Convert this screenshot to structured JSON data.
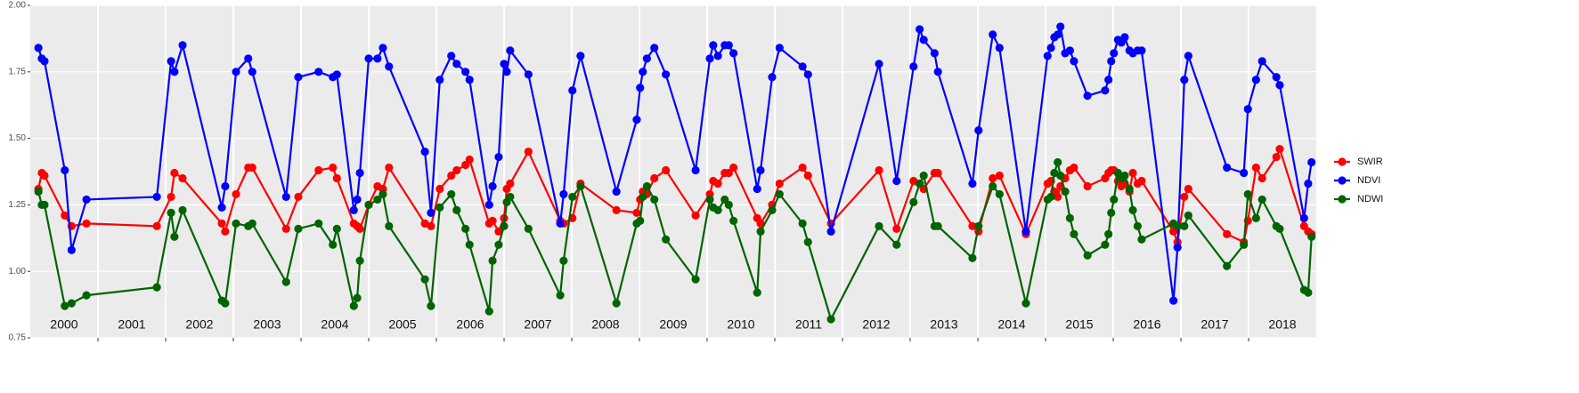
{
  "chart_data": {
    "type": "line",
    "x": [
      2000.12,
      2000.17,
      2000.21,
      2000.51,
      2000.61,
      2000.83,
      2001.87,
      2002.08,
      2002.13,
      2002.25,
      2002.83,
      2002.88,
      2003.04,
      2003.22,
      2003.28,
      2003.78,
      2003.96,
      2004.26,
      2004.47,
      2004.53,
      2004.78,
      2004.83,
      2004.87,
      2005.0,
      2005.13,
      2005.21,
      2005.3,
      2005.83,
      2005.92,
      2006.05,
      2006.22,
      2006.3,
      2006.43,
      2006.49,
      2006.78,
      2006.83,
      2006.92,
      2007.0,
      2007.04,
      2007.09,
      2007.36,
      2007.83,
      2007.88,
      2008.01,
      2008.13,
      2008.66,
      2008.96,
      2009.01,
      2009.05,
      2009.11,
      2009.22,
      2009.39,
      2009.83,
      2010.04,
      2010.09,
      2010.16,
      2010.26,
      2010.32,
      2010.39,
      2010.74,
      2010.79,
      2010.96,
      2011.07,
      2011.41,
      2011.49,
      2011.83,
      2012.54,
      2012.8,
      2013.05,
      2013.14,
      2013.2,
      2013.36,
      2013.41,
      2013.92,
      2014.01,
      2014.22,
      2014.32,
      2014.71,
      2015.03,
      2015.08,
      2015.13,
      2015.18,
      2015.22,
      2015.29,
      2015.36,
      2015.42,
      2015.62,
      2015.88,
      2015.93,
      2015.97,
      2016.01,
      2016.07,
      2016.12,
      2016.17,
      2016.24,
      2016.29,
      2016.36,
      2016.42,
      2016.89,
      2016.95,
      2017.05,
      2017.11,
      2017.68,
      2017.93,
      2017.99,
      2018.11,
      2018.2,
      2018.41,
      2018.46,
      2018.82,
      2018.88,
      2018.93
    ],
    "series": [
      {
        "name": "SWIR",
        "color": "#ff0000",
        "values": [
          1.31,
          1.37,
          1.36,
          1.21,
          1.17,
          1.18,
          1.17,
          1.28,
          1.37,
          1.35,
          1.18,
          1.15,
          1.29,
          1.39,
          1.39,
          1.16,
          1.28,
          1.38,
          1.39,
          1.35,
          1.18,
          1.17,
          1.16,
          1.25,
          1.32,
          1.31,
          1.39,
          1.18,
          1.17,
          1.31,
          1.36,
          1.38,
          1.4,
          1.42,
          1.18,
          1.19,
          1.15,
          1.2,
          1.31,
          1.33,
          1.45,
          1.19,
          1.18,
          1.2,
          1.33,
          1.23,
          1.22,
          1.27,
          1.3,
          1.29,
          1.35,
          1.38,
          1.21,
          1.29,
          1.34,
          1.33,
          1.37,
          1.37,
          1.39,
          1.2,
          1.18,
          1.25,
          1.33,
          1.39,
          1.36,
          1.18,
          1.38,
          1.16,
          1.34,
          1.33,
          1.31,
          1.37,
          1.37,
          1.17,
          1.15,
          1.35,
          1.36,
          1.14,
          1.33,
          1.34,
          1.3,
          1.28,
          1.32,
          1.35,
          1.38,
          1.39,
          1.32,
          1.35,
          1.37,
          1.38,
          1.38,
          1.34,
          1.32,
          1.33,
          1.3,
          1.37,
          1.33,
          1.34,
          1.15,
          1.11,
          1.28,
          1.31,
          1.14,
          1.11,
          1.19,
          1.39,
          1.35,
          1.43,
          1.46,
          1.17,
          1.15,
          1.14
        ]
      },
      {
        "name": "NDVI",
        "color": "#0000ff",
        "values": [
          1.84,
          1.8,
          1.79,
          1.38,
          1.08,
          1.27,
          1.28,
          1.79,
          1.75,
          1.85,
          1.24,
          1.32,
          1.75,
          1.8,
          1.75,
          1.28,
          1.73,
          1.75,
          1.73,
          1.74,
          1.23,
          1.27,
          1.37,
          1.8,
          1.8,
          1.84,
          1.77,
          1.45,
          1.22,
          1.72,
          1.81,
          1.78,
          1.75,
          1.72,
          1.25,
          1.32,
          1.43,
          1.78,
          1.75,
          1.83,
          1.74,
          1.18,
          1.29,
          1.68,
          1.81,
          1.3,
          1.57,
          1.69,
          1.75,
          1.8,
          1.84,
          1.74,
          1.38,
          1.8,
          1.85,
          1.81,
          1.85,
          1.85,
          1.82,
          1.31,
          1.38,
          1.73,
          1.84,
          1.77,
          1.74,
          1.15,
          1.78,
          1.34,
          1.77,
          1.91,
          1.87,
          1.82,
          1.75,
          1.33,
          1.53,
          1.89,
          1.84,
          1.15,
          1.81,
          1.84,
          1.88,
          1.89,
          1.92,
          1.82,
          1.83,
          1.79,
          1.66,
          1.68,
          1.72,
          1.79,
          1.82,
          1.87,
          1.86,
          1.88,
          1.83,
          1.82,
          1.83,
          1.83,
          0.89,
          1.09,
          1.72,
          1.81,
          1.39,
          1.37,
          1.61,
          1.72,
          1.79,
          1.73,
          1.7,
          1.2,
          1.33,
          1.41
        ]
      },
      {
        "name": "NDWI",
        "color": "#006400",
        "values": [
          1.3,
          1.25,
          1.25,
          0.87,
          0.88,
          0.91,
          0.94,
          1.22,
          1.13,
          1.23,
          0.89,
          0.88,
          1.18,
          1.17,
          1.18,
          0.96,
          1.16,
          1.18,
          1.1,
          1.16,
          0.87,
          0.9,
          1.04,
          1.25,
          1.27,
          1.29,
          1.17,
          0.97,
          0.87,
          1.24,
          1.29,
          1.23,
          1.16,
          1.1,
          0.85,
          1.04,
          1.1,
          1.17,
          1.26,
          1.28,
          1.16,
          0.91,
          1.04,
          1.28,
          1.32,
          0.88,
          1.18,
          1.19,
          1.28,
          1.32,
          1.27,
          1.12,
          0.97,
          1.27,
          1.24,
          1.23,
          1.27,
          1.25,
          1.19,
          0.92,
          1.15,
          1.23,
          1.29,
          1.18,
          1.11,
          0.82,
          1.17,
          1.1,
          1.26,
          1.33,
          1.36,
          1.17,
          1.17,
          1.05,
          1.17,
          1.32,
          1.29,
          0.88,
          1.27,
          1.28,
          1.37,
          1.41,
          1.36,
          1.3,
          1.2,
          1.14,
          1.06,
          1.1,
          1.14,
          1.22,
          1.27,
          1.37,
          1.35,
          1.36,
          1.31,
          1.23,
          1.17,
          1.12,
          1.18,
          1.17,
          1.17,
          1.21,
          1.02,
          1.1,
          1.29,
          1.2,
          1.27,
          1.17,
          1.16,
          0.93,
          0.92,
          1.13
        ]
      }
    ],
    "xlim": [
      2000,
      2019
    ],
    "xticks": [
      {
        "value": 2000.5,
        "label": "2000"
      },
      {
        "value": 2001.5,
        "label": "2001"
      },
      {
        "value": 2002.5,
        "label": "2002"
      },
      {
        "value": 2003.5,
        "label": "2003"
      },
      {
        "value": 2004.5,
        "label": "2004"
      },
      {
        "value": 2005.5,
        "label": "2005"
      },
      {
        "value": 2006.5,
        "label": "2006"
      },
      {
        "value": 2007.5,
        "label": "2007"
      },
      {
        "value": 2008.5,
        "label": "2008"
      },
      {
        "value": 2009.5,
        "label": "2009"
      },
      {
        "value": 2010.5,
        "label": "2010"
      },
      {
        "value": 2011.5,
        "label": "2011"
      },
      {
        "value": 2012.5,
        "label": "2012"
      },
      {
        "value": 2013.5,
        "label": "2013"
      },
      {
        "value": 2014.5,
        "label": "2014"
      },
      {
        "value": 2015.5,
        "label": "2015"
      },
      {
        "value": 2016.5,
        "label": "2016"
      },
      {
        "value": 2017.5,
        "label": "2017"
      },
      {
        "value": 2018.5,
        "label": "2018"
      }
    ],
    "ylim": [
      0.75,
      2.0
    ],
    "yticks": [
      0.75,
      {
        "value": 1.0,
        "label": "1.00"
      },
      1.25,
      {
        "value": 1.5,
        "label": "1.50"
      },
      1.75,
      {
        "value": 2.0,
        "label": "2.00"
      }
    ],
    "grid": true,
    "legend": "right"
  }
}
